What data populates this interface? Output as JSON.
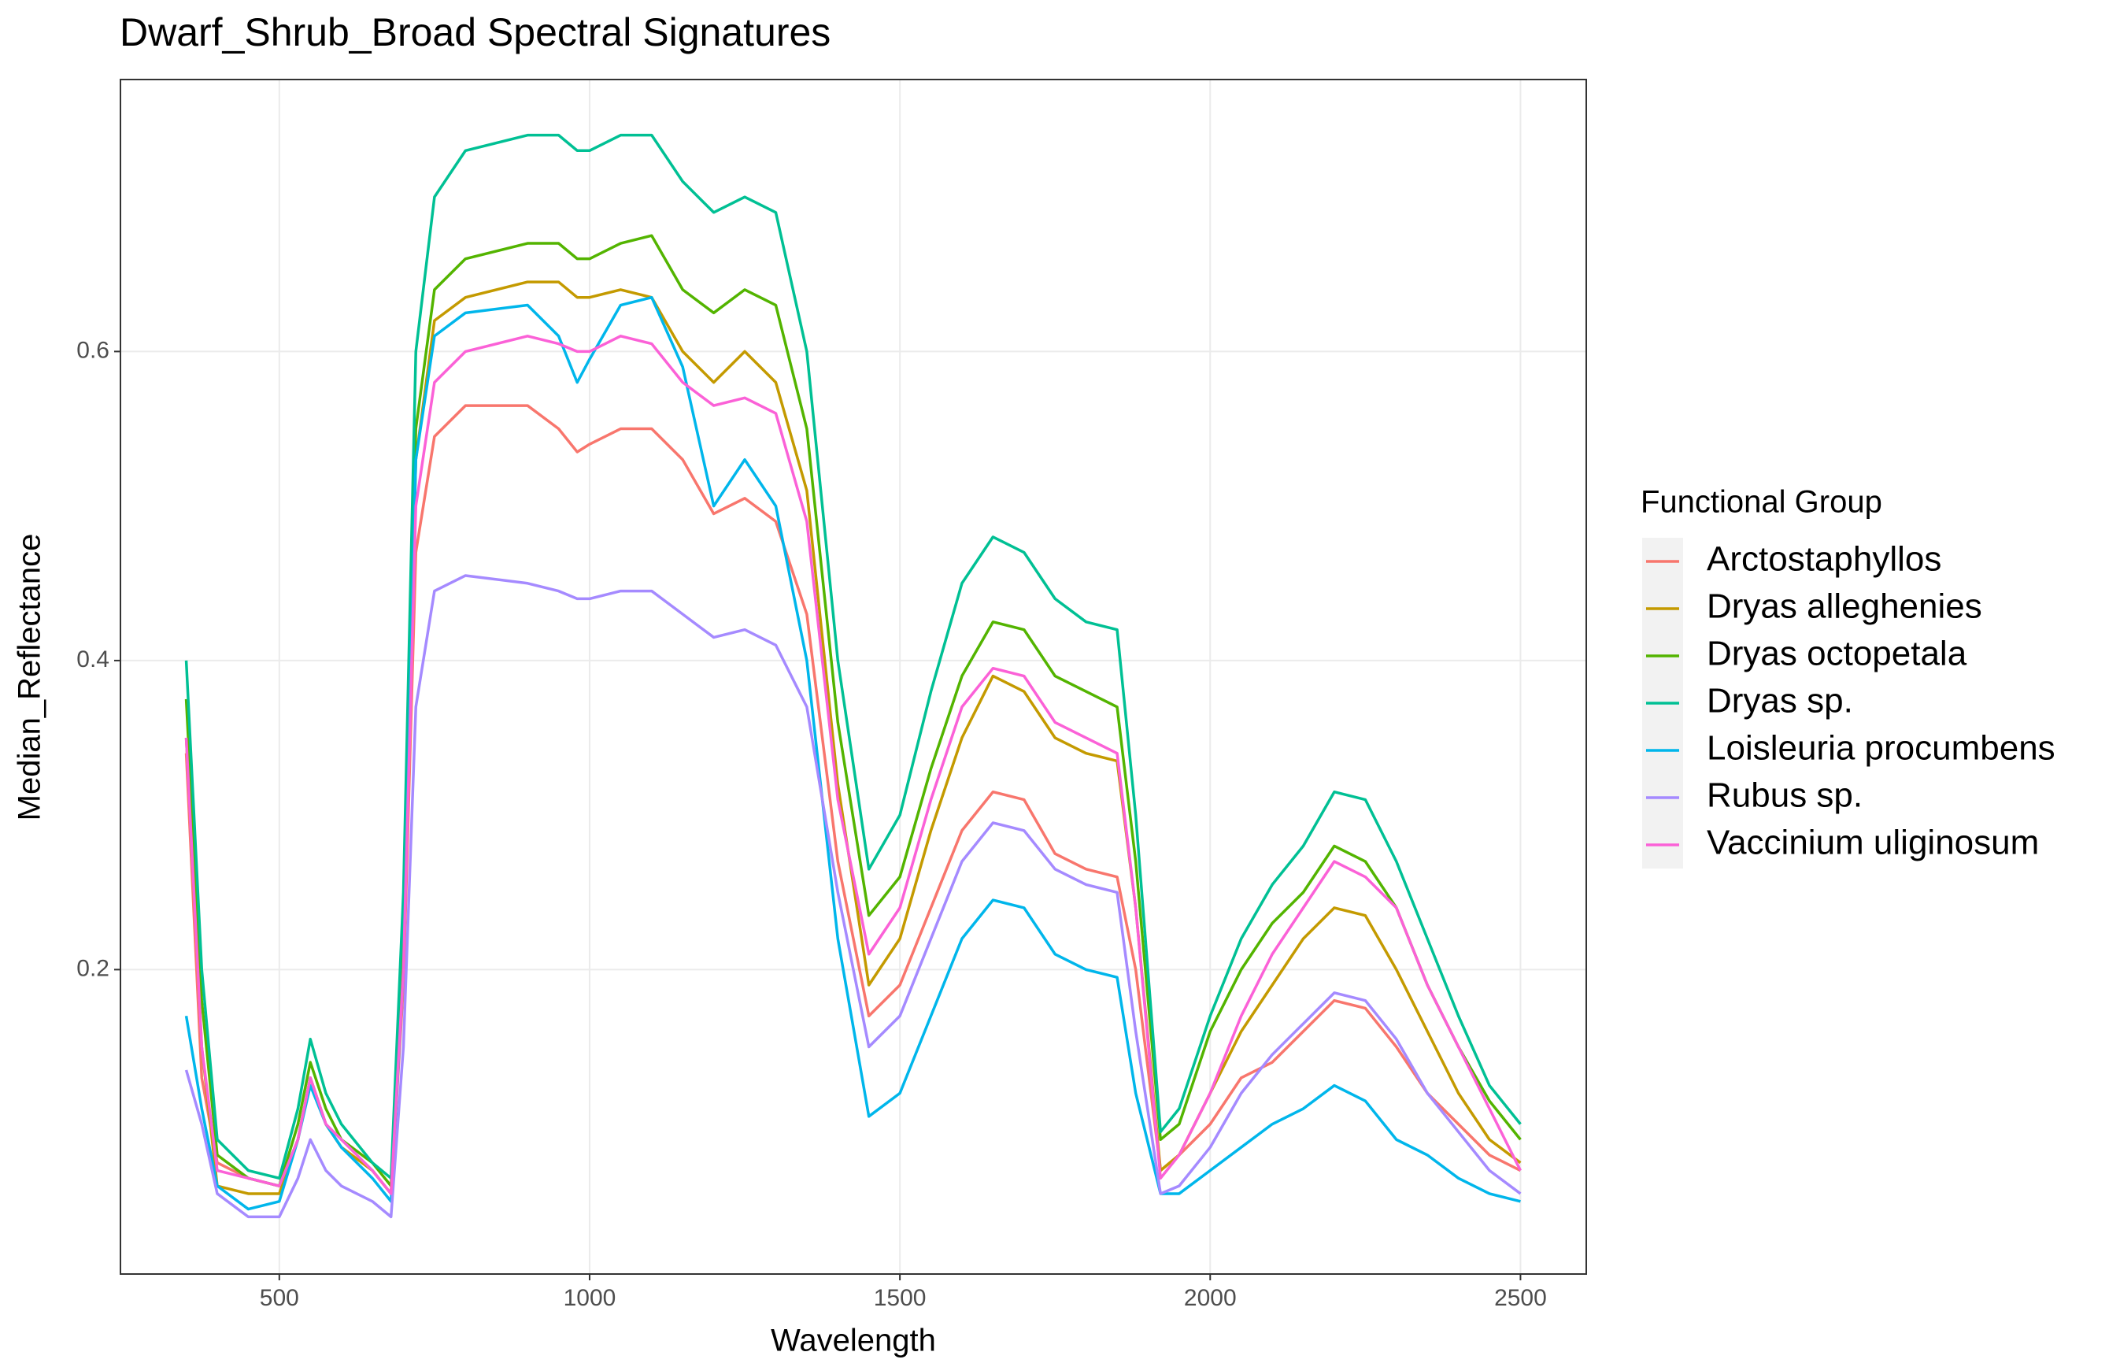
{
  "chart_data": {
    "type": "line",
    "title": "Dwarf_Shrub_Broad Spectral Signatures",
    "x_label": "Wavelength",
    "y_label": "Median_Reflectance",
    "legend_title": "Functional Group",
    "legend": "right",
    "grid": true,
    "xlim": [
      244,
      2606
    ],
    "ylim": [
      0.003,
      0.776
    ],
    "xticks": [
      500,
      1000,
      1500,
      2000,
      2500
    ],
    "yticks": [
      0.2,
      0.4,
      0.6
    ],
    "x": [
      350,
      375,
      400,
      450,
      500,
      530,
      550,
      575,
      600,
      650,
      680,
      700,
      720,
      750,
      800,
      900,
      950,
      980,
      1000,
      1050,
      1100,
      1150,
      1200,
      1250,
      1300,
      1350,
      1400,
      1450,
      1500,
      1550,
      1600,
      1650,
      1700,
      1750,
      1800,
      1850,
      1880,
      1920,
      1950,
      2000,
      2050,
      2100,
      2150,
      2200,
      2250,
      2300,
      2350,
      2400,
      2450,
      2500
    ],
    "series": [
      {
        "name": "Arctostaphyllos",
        "color": "#F8766D",
        "values": [
          0.34,
          0.13,
          0.075,
          0.065,
          0.06,
          0.09,
          0.13,
          0.1,
          0.085,
          0.07,
          0.055,
          0.19,
          0.47,
          0.545,
          0.565,
          0.565,
          0.55,
          0.535,
          0.54,
          0.55,
          0.55,
          0.53,
          0.495,
          0.505,
          0.49,
          0.43,
          0.27,
          0.17,
          0.19,
          0.24,
          0.29,
          0.315,
          0.31,
          0.275,
          0.265,
          0.26,
          0.2,
          0.07,
          0.08,
          0.1,
          0.13,
          0.14,
          0.16,
          0.18,
          0.175,
          0.15,
          0.12,
          0.1,
          0.08,
          0.07
        ]
      },
      {
        "name": "Dryas alleghenies",
        "color": "#C49A00",
        "values": [
          0.35,
          0.15,
          0.06,
          0.055,
          0.055,
          0.09,
          0.13,
          0.1,
          0.085,
          0.07,
          0.055,
          0.21,
          0.53,
          0.62,
          0.635,
          0.645,
          0.645,
          0.635,
          0.635,
          0.64,
          0.635,
          0.6,
          0.58,
          0.6,
          0.58,
          0.51,
          0.32,
          0.19,
          0.22,
          0.29,
          0.35,
          0.39,
          0.38,
          0.35,
          0.34,
          0.335,
          0.24,
          0.07,
          0.08,
          0.12,
          0.16,
          0.19,
          0.22,
          0.24,
          0.235,
          0.2,
          0.16,
          0.12,
          0.09,
          0.075
        ]
      },
      {
        "name": "Dryas octopetala",
        "color": "#53B400",
        "values": [
          0.375,
          0.18,
          0.08,
          0.065,
          0.06,
          0.1,
          0.14,
          0.11,
          0.09,
          0.075,
          0.06,
          0.22,
          0.55,
          0.64,
          0.66,
          0.67,
          0.67,
          0.66,
          0.66,
          0.67,
          0.675,
          0.64,
          0.625,
          0.64,
          0.63,
          0.55,
          0.36,
          0.235,
          0.26,
          0.33,
          0.39,
          0.425,
          0.42,
          0.39,
          0.38,
          0.37,
          0.27,
          0.09,
          0.1,
          0.16,
          0.2,
          0.23,
          0.25,
          0.28,
          0.27,
          0.24,
          0.19,
          0.15,
          0.115,
          0.09
        ]
      },
      {
        "name": "Dryas sp.",
        "color": "#00C094",
        "values": [
          0.4,
          0.2,
          0.09,
          0.07,
          0.065,
          0.11,
          0.155,
          0.12,
          0.1,
          0.075,
          0.065,
          0.25,
          0.6,
          0.7,
          0.73,
          0.74,
          0.74,
          0.73,
          0.73,
          0.74,
          0.74,
          0.71,
          0.69,
          0.7,
          0.69,
          0.6,
          0.4,
          0.265,
          0.3,
          0.38,
          0.45,
          0.48,
          0.47,
          0.44,
          0.425,
          0.42,
          0.3,
          0.095,
          0.11,
          0.17,
          0.22,
          0.255,
          0.28,
          0.315,
          0.31,
          0.27,
          0.22,
          0.17,
          0.125,
          0.1
        ]
      },
      {
        "name": "Loisleuria procumbens",
        "color": "#00B6EB",
        "values": [
          0.17,
          0.11,
          0.06,
          0.045,
          0.05,
          0.09,
          0.125,
          0.1,
          0.085,
          0.065,
          0.05,
          0.2,
          0.53,
          0.61,
          0.625,
          0.63,
          0.61,
          0.58,
          0.595,
          0.63,
          0.635,
          0.59,
          0.5,
          0.53,
          0.5,
          0.4,
          0.22,
          0.105,
          0.12,
          0.17,
          0.22,
          0.245,
          0.24,
          0.21,
          0.2,
          0.195,
          0.12,
          0.055,
          0.055,
          0.07,
          0.085,
          0.1,
          0.11,
          0.125,
          0.115,
          0.09,
          0.08,
          0.065,
          0.055,
          0.05
        ]
      },
      {
        "name": "Rubus sp.",
        "color": "#A58AFF",
        "values": [
          0.135,
          0.1,
          0.055,
          0.04,
          0.04,
          0.065,
          0.09,
          0.07,
          0.06,
          0.05,
          0.04,
          0.15,
          0.37,
          0.445,
          0.455,
          0.45,
          0.445,
          0.44,
          0.44,
          0.445,
          0.445,
          0.43,
          0.415,
          0.42,
          0.41,
          0.37,
          0.25,
          0.15,
          0.17,
          0.22,
          0.27,
          0.295,
          0.29,
          0.265,
          0.255,
          0.25,
          0.16,
          0.055,
          0.06,
          0.085,
          0.12,
          0.145,
          0.165,
          0.185,
          0.18,
          0.155,
          0.12,
          0.095,
          0.07,
          0.055
        ]
      },
      {
        "name": "Vaccinium uliginosum",
        "color": "#FB61D7",
        "values": [
          0.35,
          0.15,
          0.07,
          0.065,
          0.06,
          0.09,
          0.13,
          0.1,
          0.09,
          0.07,
          0.055,
          0.2,
          0.5,
          0.58,
          0.6,
          0.61,
          0.605,
          0.6,
          0.6,
          0.61,
          0.605,
          0.58,
          0.565,
          0.57,
          0.56,
          0.49,
          0.31,
          0.21,
          0.24,
          0.31,
          0.37,
          0.395,
          0.39,
          0.36,
          0.35,
          0.34,
          0.24,
          0.065,
          0.08,
          0.12,
          0.17,
          0.21,
          0.24,
          0.27,
          0.26,
          0.24,
          0.19,
          0.15,
          0.11,
          0.07
        ]
      }
    ]
  }
}
